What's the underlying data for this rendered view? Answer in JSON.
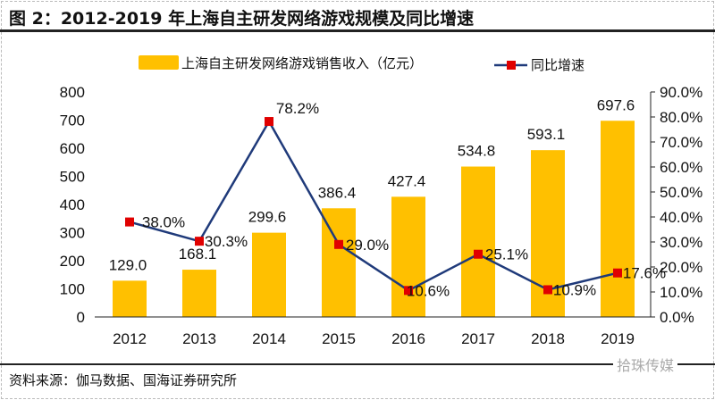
{
  "title": "图 2：2012-2019 年上海自主研发网络游戏规模及同比增速",
  "source": "资料来源：伽马数据、国海证券研究所",
  "watermark": "拾珠传媒",
  "colors": {
    "bar": "#FFC000",
    "line": "#1F3A7A",
    "marker": "#E00000"
  },
  "chart_data": {
    "type": "bar+line",
    "categories": [
      "2012",
      "2013",
      "2014",
      "2015",
      "2016",
      "2017",
      "2018",
      "2019"
    ],
    "series": [
      {
        "name": "上海自主研发网络游戏销售收入（亿元）",
        "type": "bar",
        "axis": "left",
        "values": [
          129.0,
          168.1,
          299.6,
          386.4,
          427.4,
          534.8,
          593.1,
          697.6
        ],
        "labels": [
          "129.0",
          "168.1",
          "299.6",
          "386.4",
          "427.4",
          "534.8",
          "593.1",
          "697.6"
        ]
      },
      {
        "name": "同比增速",
        "type": "line",
        "axis": "right",
        "values": [
          38.0,
          30.3,
          78.2,
          29.0,
          10.6,
          25.1,
          10.9,
          17.6
        ],
        "labels": [
          "38.0%",
          "30.3%",
          "78.2%",
          "29.0%",
          "10.6%",
          "25.1%",
          "10.9%",
          "17.6%"
        ]
      }
    ],
    "left_axis": {
      "range": [
        0,
        800
      ],
      "ticks": [
        "0",
        "100",
        "200",
        "300",
        "400",
        "500",
        "600",
        "700",
        "800"
      ]
    },
    "right_axis": {
      "range": [
        0,
        90
      ],
      "ticks": [
        "0.0%",
        "10.0%",
        "20.0%",
        "30.0%",
        "40.0%",
        "50.0%",
        "60.0%",
        "70.0%",
        "80.0%",
        "90.0%"
      ]
    },
    "legend_position": "top-center",
    "grid": false
  }
}
